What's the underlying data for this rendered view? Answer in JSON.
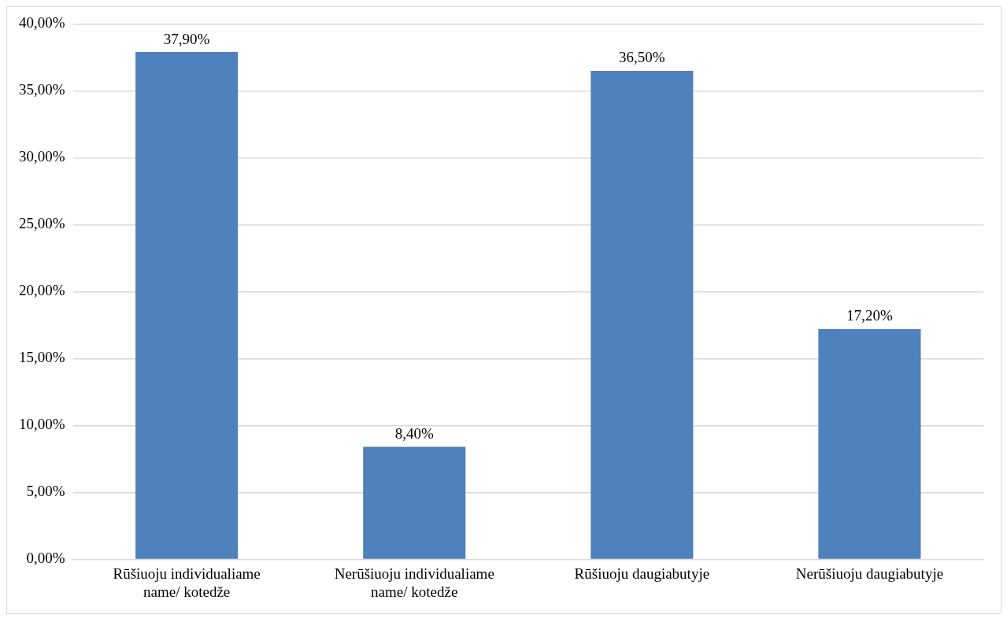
{
  "chart_data": {
    "type": "bar",
    "categories": [
      "Rūšiuoju individualiame name/ kotedže",
      "Nerūšiuoju individualiame name/ kotedže",
      "Rūšiuoju daugiabutyje",
      "Nerūšiuoju daugiabutyje"
    ],
    "values": [
      37.9,
      8.4,
      36.5,
      17.2
    ],
    "value_labels": [
      "37,90%",
      "8,40%",
      "36,50%",
      "17,20%"
    ],
    "color": "#4f81bd",
    "ylim": [
      0,
      40
    ],
    "yticks": [
      {
        "value": 0,
        "label": "0,00%"
      },
      {
        "value": 5,
        "label": "5,00%"
      },
      {
        "value": 10,
        "label": "10,00%"
      },
      {
        "value": 15,
        "label": "15,00%"
      },
      {
        "value": 20,
        "label": "20,00%"
      },
      {
        "value": 25,
        "label": "25,00%"
      },
      {
        "value": 30,
        "label": "30,00%"
      },
      {
        "value": 35,
        "label": "35,00%"
      },
      {
        "value": 40,
        "label": "40,00%"
      }
    ],
    "grid": "y"
  }
}
